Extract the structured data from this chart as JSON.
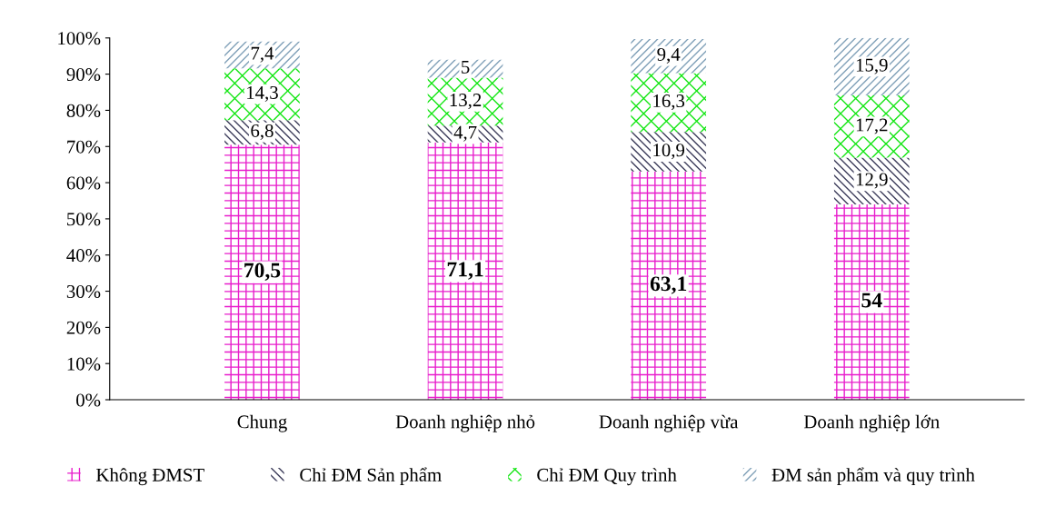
{
  "chart_data": {
    "type": "bar",
    "stacked": true,
    "categories": [
      "Chung",
      "Doanh nghiệp nhỏ",
      "Doanh nghiệp vừa",
      "Doanh nghiệp lớn"
    ],
    "series": [
      {
        "name": "Không ĐMST",
        "color": "#e81ccc",
        "values": [
          70.5,
          71.1,
          63.1,
          54
        ],
        "value_labels": [
          "70,5",
          "71,1",
          "63,1",
          "54"
        ]
      },
      {
        "name": "Chỉ ĐM Sản phẩm",
        "color": "#3c3c5a",
        "values": [
          6.8,
          4.7,
          10.9,
          12.9
        ],
        "value_labels": [
          "6,8",
          "4,7",
          "10,9",
          "12,9"
        ]
      },
      {
        "name": "Chỉ ĐM Quy trình",
        "color": "#14e614",
        "values": [
          14.3,
          13.2,
          16.3,
          17.2
        ],
        "value_labels": [
          "14,3",
          "13,2",
          "16,3",
          "17,2"
        ]
      },
      {
        "name": "ĐM sản phẩm và quy trình",
        "color": "#7fa0b8",
        "values": [
          7.4,
          5,
          9.4,
          15.9
        ],
        "value_labels": [
          "7,4",
          "5",
          "9,4",
          "15,9"
        ]
      }
    ],
    "ylim": [
      0,
      100
    ],
    "yticks": [
      {
        "value": 0,
        "label": "0%"
      },
      {
        "value": 10,
        "label": "10%"
      },
      {
        "value": 20,
        "label": "20%"
      },
      {
        "value": 30,
        "label": "30%"
      },
      {
        "value": 40,
        "label": "40%"
      },
      {
        "value": 50,
        "label": "50%"
      },
      {
        "value": 60,
        "label": "60%"
      },
      {
        "value": 70,
        "label": "70%"
      },
      {
        "value": 80,
        "label": "80%"
      },
      {
        "value": 90,
        "label": "90%"
      },
      {
        "value": 100,
        "label": "100%"
      }
    ],
    "legend": "bottom",
    "grid": false
  }
}
